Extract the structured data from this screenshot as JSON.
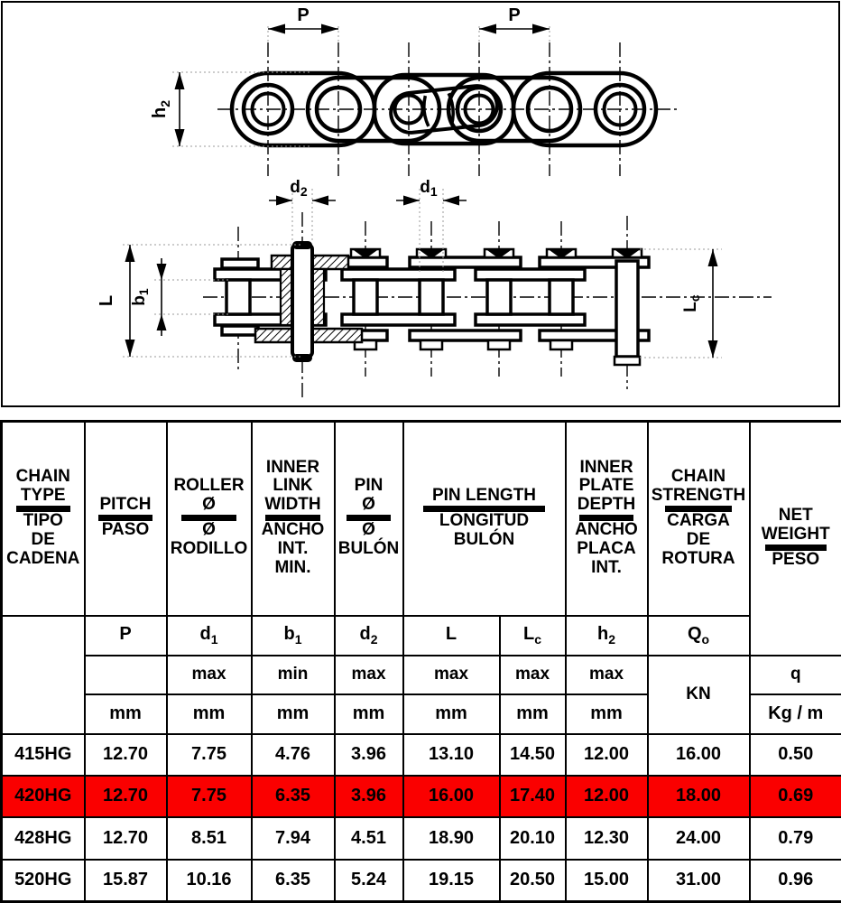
{
  "colors": {
    "highlight_row": "#fa0000",
    "line": "#000000",
    "dim_guide": "#999999"
  },
  "diagram": {
    "pitch_label": "P",
    "h2": {
      "base": "h",
      "sub": "2"
    },
    "d2": {
      "base": "d",
      "sub": "2"
    },
    "d1": {
      "base": "d",
      "sub": "1"
    },
    "length_label": "L",
    "b1": {
      "base": "b",
      "sub": "1"
    },
    "lc": {
      "base": "L",
      "sub": "c"
    }
  },
  "table": {
    "headers": [
      {
        "en": "CHAIN\nTYPE",
        "es": "TIPO\nDE\nCADENA"
      },
      {
        "en": "PITCH",
        "es": "PASO"
      },
      {
        "en": "ROLLER\nØ",
        "es": "Ø\nRODILLO"
      },
      {
        "en": "INNER\nLINK\nWIDTH",
        "es": "ANCHO\nINT.\nMIN."
      },
      {
        "en": "PIN\nØ",
        "es": "Ø\nBULÓN"
      },
      {
        "en": "PIN LENGTH",
        "es": "LONGITUD\nBULÓN"
      },
      {
        "en": "INNER\nPLATE\nDEPTH",
        "es": "ANCHO\nPLACA\nINT."
      },
      {
        "en": "CHAIN\nSTRENGTH",
        "es": "CARGA\nDE\nROTURA"
      },
      {
        "en": "NET\nWEIGHT",
        "es": "PESO"
      }
    ],
    "symbols": {
      "p": {
        "base": "P",
        "sub": ""
      },
      "d1": {
        "base": "d",
        "sub": "1"
      },
      "b1": {
        "base": "b",
        "sub": "1"
      },
      "d2": {
        "base": "d",
        "sub": "2"
      },
      "l": {
        "base": "L",
        "sub": ""
      },
      "lc": {
        "base": "L",
        "sub": "c"
      },
      "h2": {
        "base": "h",
        "sub": "2"
      },
      "q0": {
        "base": "Q",
        "sub": "o"
      },
      "q": {
        "base": "q",
        "sub": ""
      }
    },
    "limits": {
      "p": "",
      "d1": "max",
      "b1": "min",
      "d2": "max",
      "l": "max",
      "lc": "max",
      "h2": "max"
    },
    "units": {
      "mm": "mm",
      "kn": "KN",
      "kgm": "Kg / m"
    },
    "rows": [
      {
        "type": "415HG",
        "values": [
          "12.70",
          "7.75",
          "4.76",
          "3.96",
          "13.10",
          "14.50",
          "12.00",
          "16.00",
          "0.50"
        ],
        "highlighted": false
      },
      {
        "type": "420HG",
        "values": [
          "12.70",
          "7.75",
          "6.35",
          "3.96",
          "16.00",
          "17.40",
          "12.00",
          "18.00",
          "0.69"
        ],
        "highlighted": true
      },
      {
        "type": "428HG",
        "values": [
          "12.70",
          "8.51",
          "7.94",
          "4.51",
          "18.90",
          "20.10",
          "12.30",
          "24.00",
          "0.79"
        ],
        "highlighted": false
      },
      {
        "type": "520HG",
        "values": [
          "15.87",
          "10.16",
          "6.35",
          "5.24",
          "19.15",
          "20.50",
          "15.00",
          "31.00",
          "0.96"
        ],
        "highlighted": false
      }
    ]
  }
}
